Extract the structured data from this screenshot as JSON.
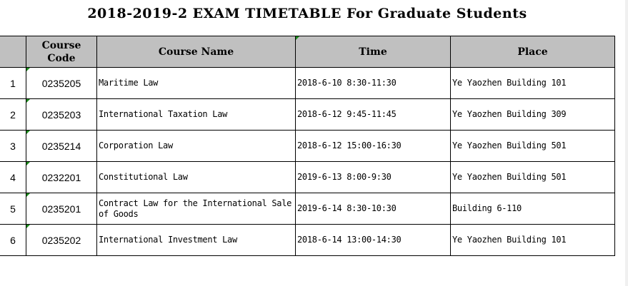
{
  "title": "2018-2019-2 EXAM TIMETABLE For Graduate Students",
  "headers": {
    "index": "",
    "code": "Course Code",
    "name": "Course Name",
    "time": "Time",
    "place": "Place"
  },
  "rows": [
    {
      "index": "1",
      "code": "0235205",
      "name": "Maritime Law",
      "time": "2018-6-10 8:30-11:30",
      "place": "Ye Yaozhen Building 101"
    },
    {
      "index": "2",
      "code": "0235203",
      "name": "International Taxation Law",
      "time": "2018-6-12 9:45-11:45",
      "place": "Ye Yaozhen Building 309"
    },
    {
      "index": "3",
      "code": "0235214",
      "name": "Corporation Law",
      "time": "2018-6-12 15:00-16:30",
      "place": "Ye Yaozhen Building 501"
    },
    {
      "index": "4",
      "code": "0232201",
      "name": "Constitutional Law",
      "time": "2019-6-13 8:00-9:30",
      "place": "Ye Yaozhen Building 501"
    },
    {
      "index": "5",
      "code": "0235201",
      "name": "Contract Law for the International Sale of Goods",
      "time": "2019-6-14 8:30-10:30",
      "place": "Building 6-110"
    },
    {
      "index": "6",
      "code": "0235202",
      "name": "International Investment Law",
      "time": "2018-6-14 13:00-14:30",
      "place": "Ye Yaozhen Building 101"
    }
  ],
  "colors": {
    "header_bg": "#c0c0c0",
    "comment_marker": "#1a8a1a"
  }
}
